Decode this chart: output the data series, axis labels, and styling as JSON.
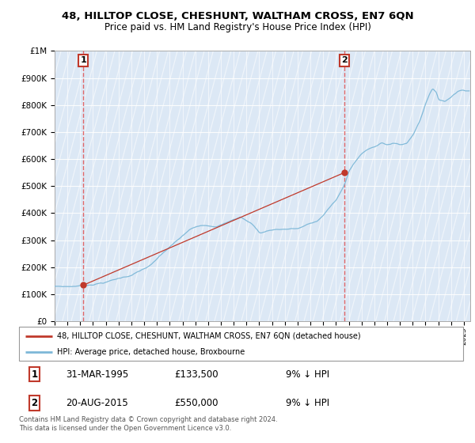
{
  "title": "48, HILLTOP CLOSE, CHESHUNT, WALTHAM CROSS, EN7 6QN",
  "subtitle": "Price paid vs. HM Land Registry's House Price Index (HPI)",
  "ylim": [
    0,
    1000000
  ],
  "yticks": [
    0,
    100000,
    200000,
    300000,
    400000,
    500000,
    600000,
    700000,
    800000,
    900000,
    1000000
  ],
  "ytick_labels": [
    "£0",
    "£100K",
    "£200K",
    "£300K",
    "£400K",
    "£500K",
    "£600K",
    "£700K",
    "£800K",
    "£900K",
    "£1M"
  ],
  "sale1_date": 1995.25,
  "sale1_price": 133500,
  "sale2_date": 2015.64,
  "sale2_price": 550000,
  "legend_line1": "48, HILLTOP CLOSE, CHESHUNT, WALTHAM CROSS, EN7 6QN (detached house)",
  "legend_line2": "HPI: Average price, detached house, Broxbourne",
  "table_row1": [
    "1",
    "31-MAR-1995",
    "£133,500",
    "9% ↓ HPI"
  ],
  "table_row2": [
    "2",
    "20-AUG-2015",
    "£550,000",
    "9% ↓ HPI"
  ],
  "footnote": "Contains HM Land Registry data © Crown copyright and database right 2024.\nThis data is licensed under the Open Government Licence v3.0.",
  "hpi_line_color": "#7db8d8",
  "price_line_color": "#c0392b",
  "sale_marker_color": "#c0392b",
  "grid_color": "#cccccc",
  "dashed_line_color": "#e05050",
  "plot_bg": "#dce8f5",
  "hatch_color": "#c8d8ec"
}
